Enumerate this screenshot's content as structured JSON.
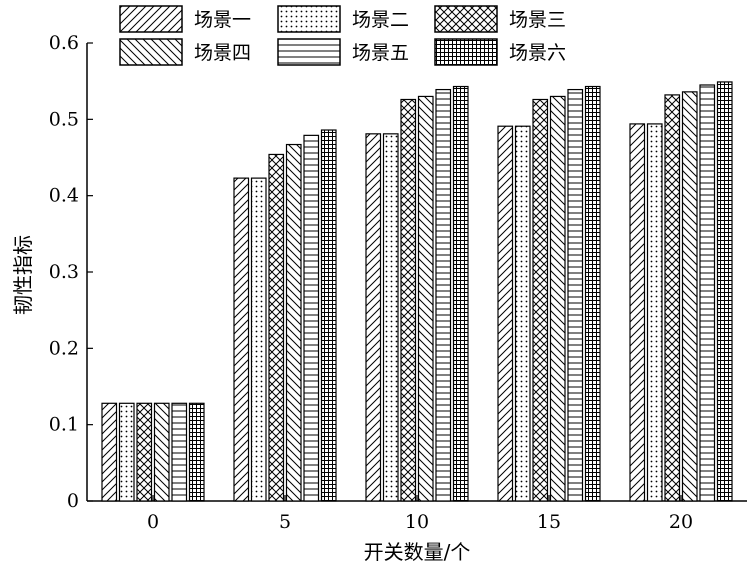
{
  "chart_data": {
    "type": "bar",
    "xlabel": "开关数量/个",
    "ylabel": "韧性指标",
    "categories": [
      "0",
      "5",
      "10",
      "15",
      "20"
    ],
    "ylim": [
      0,
      0.6
    ],
    "yticks": [
      "0",
      "0.1",
      "0.2",
      "0.3",
      "0.4",
      "0.5",
      "0.6"
    ],
    "grid": false,
    "legend_position": "top",
    "series": [
      {
        "name": "场景一",
        "pattern": "diagonal-forward",
        "values": [
          0.128,
          0.423,
          0.481,
          0.491,
          0.494
        ]
      },
      {
        "name": "场景二",
        "pattern": "dots",
        "values": [
          0.128,
          0.423,
          0.481,
          0.491,
          0.494
        ]
      },
      {
        "name": "场景三",
        "pattern": "crosshatch-diagonal",
        "values": [
          0.128,
          0.454,
          0.526,
          0.526,
          0.532
        ]
      },
      {
        "name": "场景四",
        "pattern": "diagonal-back",
        "values": [
          0.128,
          0.467,
          0.53,
          0.53,
          0.536
        ]
      },
      {
        "name": "场景五",
        "pattern": "horizontal-lines",
        "values": [
          0.128,
          0.479,
          0.539,
          0.539,
          0.545
        ]
      },
      {
        "name": "场景六",
        "pattern": "grid",
        "values": [
          0.128,
          0.486,
          0.543,
          0.543,
          0.549
        ]
      }
    ]
  }
}
